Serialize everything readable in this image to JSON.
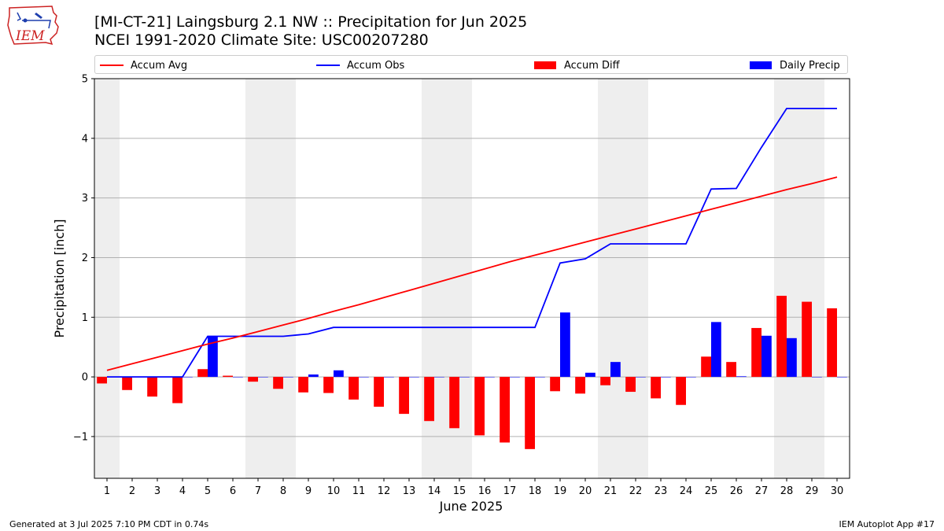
{
  "header": {
    "title_line1": "[MI-CT-21] Laingsburg 2.1 NW :: Precipitation for Jun 2025",
    "title_line2": "NCEI 1991-2020 Climate Site: USC00207280",
    "logo_text": "IEM"
  },
  "footer": {
    "generated": "Generated at 3 Jul 2025 7:10 PM CDT in 0.74s",
    "app": "IEM Autoplot App #17"
  },
  "colors": {
    "accum_avg": "#ff0000",
    "accum_obs": "#0000ff",
    "accum_diff": "#ff0000",
    "daily_precip": "#0000ff",
    "weekend_shade": "#eeeeee"
  },
  "chart_data": {
    "type": "bar",
    "xlabel": "June 2025",
    "ylabel": "Precipitation [inch]",
    "ylim": [
      -1.7,
      5
    ],
    "yticks": [
      -1,
      0,
      1,
      2,
      3,
      4,
      5
    ],
    "ytick_labels": [
      "−1",
      "0",
      "1",
      "2",
      "3",
      "4",
      "5"
    ],
    "categories": [
      "1",
      "2",
      "3",
      "4",
      "5",
      "6",
      "7",
      "8",
      "9",
      "10",
      "11",
      "12",
      "13",
      "14",
      "15",
      "16",
      "17",
      "18",
      "19",
      "20",
      "21",
      "22",
      "23",
      "24",
      "25",
      "26",
      "27",
      "28",
      "29",
      "30"
    ],
    "grid": "horizontal",
    "legend_placement": "top",
    "shaded_days": [
      1,
      7,
      8,
      14,
      15,
      21,
      22,
      28,
      29
    ],
    "series": [
      {
        "name": "Accum Avg",
        "kind": "line",
        "values": [
          0.11,
          0.22,
          0.33,
          0.44,
          0.55,
          0.65,
          0.76,
          0.87,
          0.98,
          1.1,
          1.21,
          1.33,
          1.45,
          1.57,
          1.69,
          1.81,
          1.93,
          2.04,
          2.15,
          2.26,
          2.37,
          2.48,
          2.59,
          2.7,
          2.81,
          2.92,
          3.03,
          3.14,
          3.24,
          3.35
        ]
      },
      {
        "name": "Accum Obs",
        "kind": "line",
        "values": [
          0,
          0,
          0,
          0,
          0.68,
          0.68,
          0.68,
          0.68,
          0.72,
          0.83,
          0.83,
          0.83,
          0.83,
          0.83,
          0.83,
          0.83,
          0.83,
          0.83,
          1.91,
          1.98,
          2.23,
          2.23,
          2.23,
          2.23,
          3.15,
          3.16,
          3.85,
          4.5,
          4.5,
          4.5
        ]
      },
      {
        "name": "Accum Diff",
        "kind": "bar",
        "values": [
          -0.11,
          -0.22,
          -0.33,
          -0.44,
          0.13,
          0.02,
          -0.08,
          -0.2,
          -0.26,
          -0.27,
          -0.38,
          -0.5,
          -0.62,
          -0.74,
          -0.86,
          -0.98,
          -1.1,
          -1.21,
          -0.24,
          -0.28,
          -0.14,
          -0.25,
          -0.36,
          -0.47,
          0.34,
          0.25,
          0.82,
          1.36,
          1.26,
          1.15
        ]
      },
      {
        "name": "Daily Precip",
        "kind": "bar",
        "values": [
          0,
          0,
          0,
          0,
          0.68,
          0,
          0,
          0,
          0.04,
          0.11,
          0,
          0,
          0,
          0,
          0,
          0,
          0,
          0,
          1.08,
          0.07,
          0.25,
          0,
          0,
          0,
          0.92,
          0.01,
          0.69,
          0.65,
          0,
          0
        ]
      }
    ]
  }
}
